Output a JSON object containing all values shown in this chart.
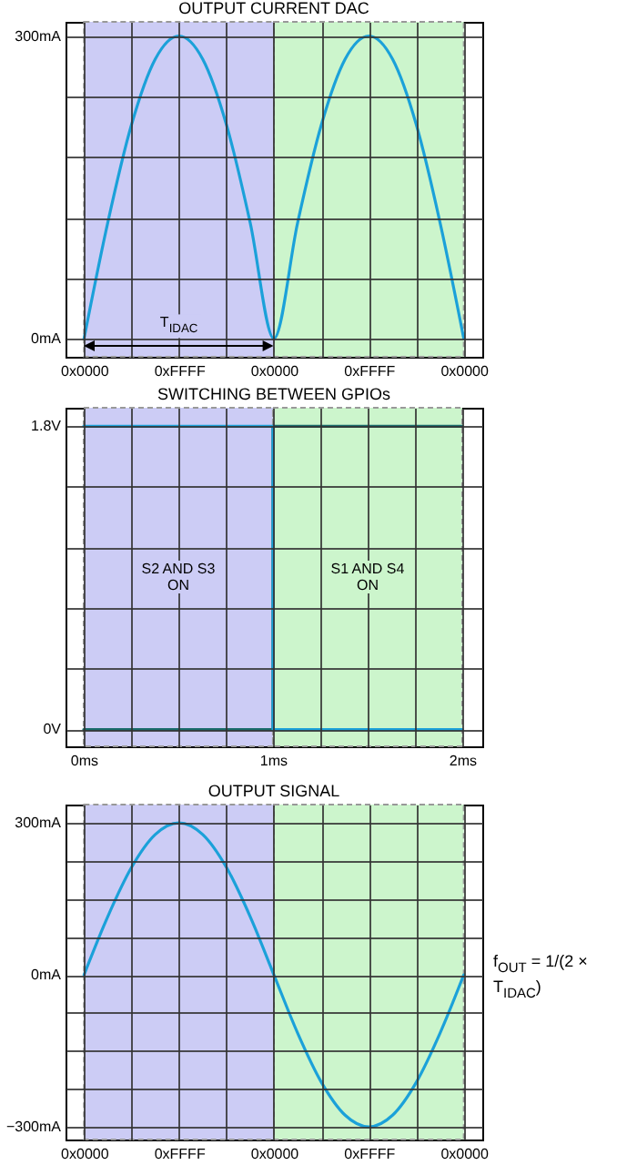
{
  "chart_data": [
    {
      "type": "line",
      "title": "OUTPUT CURRENT DAC",
      "grid": true,
      "categories": [
        "0x0000",
        null,
        null,
        null,
        "0xFFFF",
        null,
        null,
        null,
        "0x0000",
        null,
        null,
        null,
        "0xFFFF",
        null,
        null,
        null,
        "0x0000"
      ],
      "series": [
        {
          "color": "#1ba1d9",
          "values": [
            0,
            115,
            212,
            277,
            300,
            277,
            212,
            115,
            0,
            115,
            212,
            277,
            300,
            277,
            212,
            115,
            0
          ]
        }
      ],
      "ylim": [
        -18,
        314
      ],
      "yticks": [
        {
          "value": 0,
          "label": "0mA"
        },
        {
          "value": 60,
          "label": null
        },
        {
          "value": 120,
          "label": null
        },
        {
          "value": 180,
          "label": null
        },
        {
          "value": 240,
          "label": null
        },
        {
          "value": 300,
          "label": "300mA"
        }
      ],
      "annotations": [
        "T$_{IDAC}$"
      ]
    },
    {
      "type": "line",
      "title": "SWITCHING BETWEEN GPIOs",
      "grid": true,
      "x": [
        0,
        1,
        1,
        2
      ],
      "series": [
        {
          "color": "#1a6b6b",
          "values": [
            0,
            0,
            1.8,
            1.8
          ]
        },
        {
          "color": "#1ba1d9",
          "values": [
            1.8,
            1.8,
            0,
            0
          ]
        }
      ],
      "xlim": [
        -0.096,
        2.106
      ],
      "xticks": [
        {
          "value": 0,
          "label": "0ms"
        },
        {
          "value": 0.25,
          "label": null
        },
        {
          "value": 0.5,
          "label": null
        },
        {
          "value": 0.75,
          "label": null
        },
        {
          "value": 1,
          "label": "1ms"
        },
        {
          "value": 1.25,
          "label": null
        },
        {
          "value": 1.5,
          "label": null
        },
        {
          "value": 1.75,
          "label": null
        },
        {
          "value": 2,
          "label": "2ms"
        }
      ],
      "ylim": [
        -0.1,
        1.91
      ],
      "yticks": [
        {
          "value": 0,
          "label": "0V"
        },
        {
          "value": 0.36,
          "label": null
        },
        {
          "value": 0.72,
          "label": null
        },
        {
          "value": 1.08,
          "label": null
        },
        {
          "value": 1.44,
          "label": null
        },
        {
          "value": 1.8,
          "label": "1.8V"
        }
      ],
      "bands": [
        {
          "axis": "x",
          "from": 0,
          "to": 1,
          "color": "#ccccf5"
        },
        {
          "axis": "x",
          "from": 1,
          "to": 2,
          "color": "#ccf5cc"
        }
      ],
      "annotations": [
        "S2 AND S3\nON",
        "S1 AND S4\nON"
      ]
    },
    {
      "type": "line",
      "title": "OUTPUT SIGNAL",
      "grid": true,
      "categories": [
        "0x0000",
        null,
        null,
        null,
        "0xFFFF",
        null,
        null,
        null,
        "0x0000",
        null,
        null,
        null,
        "0xFFFF",
        null,
        null,
        null,
        "0x0000"
      ],
      "series": [
        {
          "color": "#1ba1d9",
          "values": [
            0,
            115,
            212,
            277,
            300,
            277,
            212,
            115,
            0,
            -115,
            -212,
            -277,
            -300,
            -277,
            -212,
            -115,
            0
          ]
        }
      ],
      "ylim": [
        -325,
        336
      ],
      "yticks": [
        {
          "value": -300,
          "label": "−300mA"
        },
        {
          "value": -225,
          "label": null
        },
        {
          "value": -150,
          "label": null
        },
        {
          "value": -75,
          "label": null
        },
        {
          "value": 0,
          "label": "0mA"
        },
        {
          "value": 75,
          "label": null
        },
        {
          "value": 150,
          "label": null
        },
        {
          "value": 225,
          "label": null
        },
        {
          "value": 300,
          "label": "300mA"
        }
      ],
      "annotations": [
        "f$_{OUT}$ = 1/(2 × T$_{IDAC}$)"
      ]
    }
  ]
}
